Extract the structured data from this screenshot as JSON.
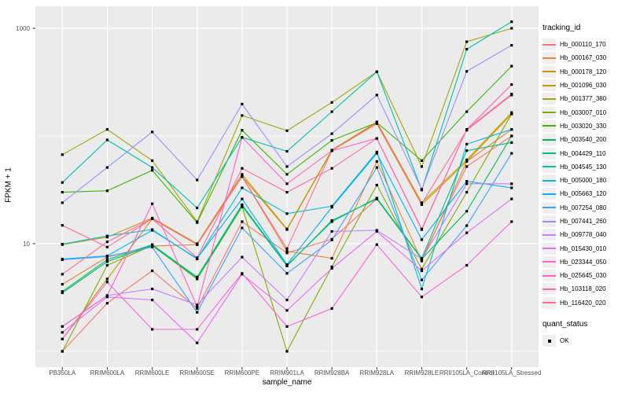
{
  "figure": {
    "background": "#FFFFFF",
    "panel_background": "#EBEBEB",
    "grid_color": "#FFFFFF",
    "tick_color": "#333333",
    "tick_label_color": "#4D4D4D",
    "point_color": "#000000"
  },
  "axes": {
    "x": {
      "label": "sample_name"
    },
    "y": {
      "label": "FPKM + 1",
      "scale": "log10",
      "tick_labels": [
        "1000",
        "10"
      ],
      "tick_values": [
        1000,
        10
      ]
    }
  },
  "legends": {
    "tracking": {
      "title": "tracking_id"
    },
    "quant": {
      "title": "quant_status",
      "entries": [
        {
          "label": "OK",
          "marker": "black-square-point"
        }
      ]
    }
  },
  "chart_data": {
    "type": "line",
    "title": "",
    "xlabel": "sample_name",
    "ylabel": "FPKM + 1",
    "y_scale": "log10",
    "ylim": [
      1,
      1200
    ],
    "y_breaks": [
      10,
      1000
    ],
    "y_minor_breaks": [
      1,
      100
    ],
    "grid": true,
    "legend_position": "right",
    "point_marker": {
      "shape": "small-black-square",
      "legend_field": "quant_status",
      "legend_value": "OK"
    },
    "categories": [
      "PB350LA",
      "RRIM600LA",
      "RRIM600LE",
      "RRIM600SE",
      "RRIM600PE",
      "RRIM901LA",
      "RRIM928BA",
      "RRIM928LA",
      "RRIM928LE",
      "RRII105LA_Control",
      "RRII105LA_Stressed"
    ],
    "series": [
      {
        "name": "Hb_000110_170",
        "color": "#F8766D",
        "values": [
          1.0,
          2.8,
          5.6,
          2.5,
          16,
          8.2,
          11,
          26,
          7.2,
          52,
          100
        ]
      },
      {
        "name": "Hb_000167_030",
        "color": "#EA8331",
        "values": [
          4.2,
          7.5,
          9.5,
          9.8,
          42,
          8.5,
          7.3,
          58,
          6.9,
          58,
          115
        ]
      },
      {
        "name": "Hb_000178_120",
        "color": "#D89000",
        "values": [
          1.3,
          4.7,
          17,
          9.8,
          42,
          13.5,
          73,
          130,
          23,
          58,
          160
        ]
      },
      {
        "name": "Hb_001096_030",
        "color": "#C09B00",
        "values": [
          9.8,
          11.5,
          17.3,
          10,
          44,
          13.7,
          74,
          135,
          24,
          60,
          165
        ]
      },
      {
        "name": "Hb_001377_380",
        "color": "#A3A500",
        "values": [
          67,
          115,
          59,
          16,
          155,
          112,
          205,
          395,
          52,
          750,
          1000
        ]
      },
      {
        "name": "Hb_003007_010",
        "color": "#7CAE00",
        "values": [
          1.0,
          6.3,
          9.6,
          4.7,
          22,
          1.0,
          6.1,
          35,
          5.8,
          30,
          160
        ]
      },
      {
        "name": "Hb_003020_330",
        "color": "#39B600",
        "values": [
          30,
          31,
          48,
          15.7,
          113,
          44,
          91,
          133,
          59,
          168,
          445
        ]
      },
      {
        "name": "Hb_003540_200",
        "color": "#00BB4E",
        "values": [
          3.5,
          6.8,
          9.6,
          4.8,
          22.3,
          6.2,
          16.4,
          26,
          7.2,
          20,
          100
        ]
      },
      {
        "name": "Hb_004429_110",
        "color": "#00C087",
        "values": [
          3.6,
          7.1,
          9.8,
          4.9,
          23,
          6.3,
          16,
          26.5,
          7.3,
          73,
          87
        ]
      },
      {
        "name": "Hb_004545_130",
        "color": "#00C0B2",
        "values": [
          37,
          92,
          51,
          21.5,
          97,
          72,
          168,
          395,
          31.5,
          640,
          1150
        ]
      },
      {
        "name": "Hb_005000_180",
        "color": "#00BCD8",
        "values": [
          9.9,
          11.8,
          13.5,
          7.2,
          33,
          19,
          22.3,
          71,
          3.8,
          84,
          115
        ]
      },
      {
        "name": "Hb_005663_120",
        "color": "#00B0F6",
        "values": [
          7.2,
          7.7,
          13.3,
          7.3,
          26,
          6.4,
          21.8,
          69,
          10.9,
          38,
          33
        ]
      },
      {
        "name": "Hb_007254_080",
        "color": "#35A2FF",
        "values": [
          7.1,
          7.6,
          9.3,
          2.3,
          14,
          5.3,
          10.8,
          51,
          4.6,
          14.7,
          69
        ]
      },
      {
        "name": "Hb_007441_260",
        "color": "#9590FF",
        "values": [
          24,
          51,
          109,
          39,
          198,
          52,
          105,
          240,
          32,
          398,
          695
        ]
      },
      {
        "name": "Hb_009778_040",
        "color": "#C77CFF",
        "values": [
          1.7,
          3.3,
          3.8,
          2.7,
          7.5,
          3.0,
          13,
          13.3,
          7.2,
          36,
          36
        ]
      },
      {
        "name": "Hb_015430_010",
        "color": "#E76BF3",
        "values": [
          1.5,
          3.2,
          3.0,
          1.2,
          5.2,
          2.4,
          5.9,
          13,
          5.6,
          12.6,
          26
        ]
      },
      {
        "name": "Hb_023344_050",
        "color": "#FA62DB",
        "values": [
          1.3,
          4.4,
          1.6,
          1.6,
          5.3,
          1.7,
          2.5,
          9.8,
          3.2,
          6.3,
          16
        ]
      },
      {
        "name": "Hb_025645_030",
        "color": "#FF61C3",
        "values": [
          1.7,
          3.3,
          23.5,
          2.6,
          97,
          36,
          73,
          95,
          13.5,
          115,
          300
        ]
      },
      {
        "name": "Hb_103118_020",
        "color": "#FF67A4",
        "values": [
          14.8,
          9.3,
          17,
          7.4,
          50,
          30,
          50,
          95,
          13.7,
          115,
          245
        ]
      },
      {
        "name": "Hb_116420_020",
        "color": "#FF6C90",
        "values": [
          5.2,
          10.4,
          17,
          9.9,
          42,
          9.0,
          73,
          133,
          23.5,
          113,
          240
        ]
      }
    ]
  }
}
